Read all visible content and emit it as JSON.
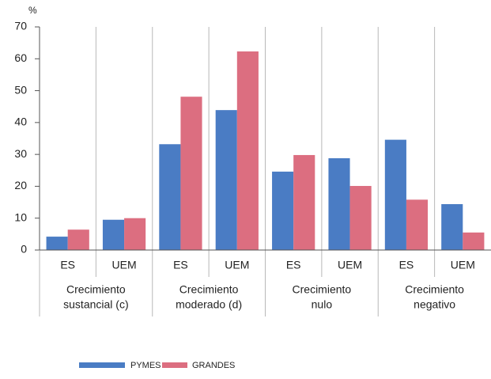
{
  "chart_data": {
    "type": "bar",
    "ylabel": "%",
    "categories": [
      "ES",
      "UEM",
      "ES",
      "UEM",
      "ES",
      "UEM",
      "ES",
      "UEM"
    ],
    "groups": [
      [
        "Crecimiento",
        "sustancial (c)"
      ],
      [
        "Crecimiento",
        "moderado (d)"
      ],
      [
        "Crecimiento",
        "nulo"
      ],
      [
        "Crecimiento",
        "negativo"
      ]
    ],
    "series": [
      {
        "name": "PYMES",
        "color": "#4a7cc4",
        "values": [
          4.2,
          9.5,
          33.2,
          43.9,
          24.6,
          28.8,
          34.6,
          14.4
        ]
      },
      {
        "name": "GRANDES",
        "color": "#dc6e80",
        "values": [
          6.4,
          10,
          48.1,
          62.3,
          29.8,
          20.1,
          15.8,
          5.5
        ]
      }
    ],
    "ylim": [
      0,
      70
    ],
    "yticks": [
      0,
      10,
      20,
      30,
      40,
      50,
      60,
      70
    ]
  }
}
